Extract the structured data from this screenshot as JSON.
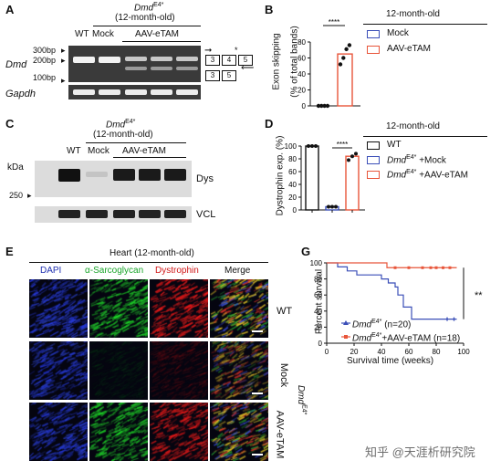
{
  "panels": {
    "A": {
      "label": "A",
      "group_title": "Dmd",
      "group_sup": "E4*",
      "age": "(12-month-old)",
      "lanes": {
        "wt": "WT",
        "mock": "Mock",
        "aav": "AAV-eTAM"
      },
      "gene_dmd": "Dmd",
      "gene_gapdh": "Gapdh",
      "markers": {
        "m300": "300bp",
        "m200": "200bp",
        "m100": "100bp"
      },
      "asterisk": "*",
      "exon_diagram": {
        "top": [
          "3",
          "4",
          "5"
        ],
        "bottom": [
          "3",
          "5"
        ]
      }
    },
    "B": {
      "label": "B",
      "ylabel_1": "Exon skipping",
      "ylabel_2": "(% of total bands)",
      "legend_title": "12-month-old",
      "legend": [
        "Mock",
        "AAV-eTAM"
      ],
      "significance": "****",
      "ticks": [
        "0",
        "20",
        "40",
        "60",
        "80"
      ]
    },
    "C": {
      "label": "C",
      "group_title": "Dmd",
      "group_sup": "E4*",
      "age": "(12-month-old)",
      "lanes": {
        "wt": "WT",
        "mock": "Mock",
        "aav": "AAV-eTAM"
      },
      "kda": "kDa",
      "marker_250": "250",
      "protein_dys": "Dys",
      "protein_vcl": "VCL"
    },
    "D": {
      "label": "D",
      "ylabel": "Dystrophin exp. (%)",
      "legend_title": "12-month-old",
      "legend": [
        {
          "prefix": "",
          "sup": "",
          "suffix": "WT"
        },
        {
          "prefix": "Dmd",
          "sup": "E4*",
          "suffix": " +Mock"
        },
        {
          "prefix": "Dmd",
          "sup": "E4*",
          "suffix": " +AAV-eTAM"
        }
      ],
      "significance": "****",
      "ticks": [
        "0",
        "20",
        "40",
        "60",
        "80",
        "100"
      ]
    },
    "E": {
      "label": "E",
      "title": "Heart (12-month-old)",
      "columns": [
        "DAPI",
        "α-Sarcoglycan",
        "Dystrophin",
        "Merge"
      ],
      "rows": [
        "WT",
        "Mock",
        "AAV-eTAM"
      ],
      "side_group": "Dmd",
      "side_sup": "E4*"
    },
    "G": {
      "label": "G",
      "ylabel": "Percent survival",
      "xlabel": "Survival time (weeks)",
      "xticks": [
        "0",
        "20",
        "40",
        "60",
        "80",
        "100"
      ],
      "yticks": [
        "0",
        "20",
        "40",
        "60",
        "80",
        "100"
      ],
      "significance": "**",
      "legend": [
        {
          "prefix": "Dmd",
          "sup": "E4*",
          "suffix": " (n=20)"
        },
        {
          "prefix": "Dmd",
          "sup": "E4*",
          "suffix": "+AAV-eTAM (n=18)"
        }
      ]
    }
  },
  "watermark": "知乎 @天涯析研究院",
  "colors": {
    "mock": "#3b4fb8",
    "aav": "#e8553a",
    "wt": "#111111",
    "dapi": "#1e2fb0",
    "sarco": "#1aa52a",
    "dys": "#d01818"
  },
  "chart_data": [
    {
      "type": "bar",
      "title": "12-month-old",
      "ylabel": "Exon skipping (% of total bands)",
      "categories": [
        "Mock",
        "AAV-eTAM"
      ],
      "values": [
        0,
        65
      ],
      "points": [
        [
          0,
          0,
          0,
          0
        ],
        [
          52,
          60,
          71,
          76
        ]
      ],
      "ylim": [
        0,
        80
      ]
    },
    {
      "type": "bar",
      "title": "12-month-old",
      "ylabel": "Dystrophin exp. (%)",
      "categories": [
        "WT",
        "DmdE4* +Mock",
        "DmdE4* +AAV-eTAM"
      ],
      "values": [
        100,
        5,
        84
      ],
      "points": [
        [
          100,
          100,
          100
        ],
        [
          5,
          5,
          5
        ],
        [
          78,
          84,
          88
        ]
      ],
      "ylim": [
        0,
        100
      ]
    },
    {
      "type": "line",
      "xlabel": "Survival time (weeks)",
      "ylabel": "Percent survival",
      "xlim": [
        0,
        100
      ],
      "ylim": [
        0,
        100
      ],
      "series": [
        {
          "name": "DmdE4* (n=20)",
          "x": [
            0,
            8,
            15,
            22,
            30,
            40,
            45,
            50,
            52,
            56,
            62,
            95
          ],
          "y": [
            100,
            95,
            90,
            85,
            85,
            80,
            75,
            70,
            60,
            45,
            30,
            30
          ]
        },
        {
          "name": "DmdE4*+AAV-eTAM (n=18)",
          "x": [
            0,
            38,
            44,
            95
          ],
          "y": [
            100,
            100,
            94,
            94
          ]
        }
      ]
    }
  ]
}
